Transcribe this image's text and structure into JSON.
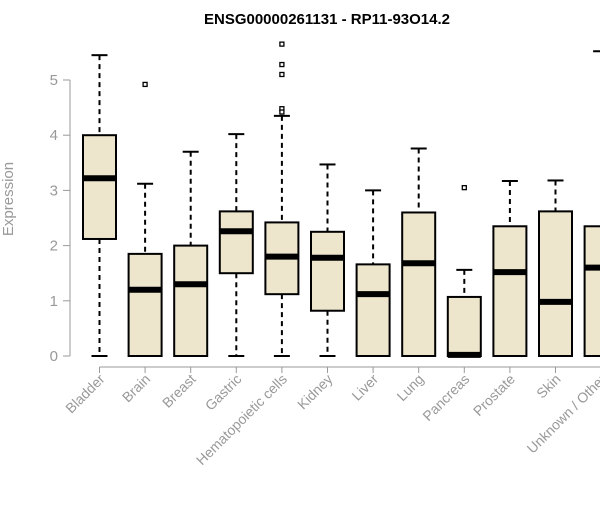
{
  "chart_data": {
    "type": "box",
    "title": "ENSG00000261131 - RP11-93O14.2",
    "xlabel": "",
    "ylabel": "Expression",
    "ylim": [
      0,
      5.5
    ],
    "yticks": [
      0,
      1,
      2,
      3,
      4,
      5
    ],
    "grid": false,
    "box_fill": "#ede6cc",
    "box_stroke": "#000000",
    "axis_color": "#999999",
    "categories": [
      "Bladder",
      "Brain",
      "Breast",
      "Gastric",
      "Hematopoietic cells",
      "Kidney",
      "Liver",
      "Lung",
      "Pancreas",
      "Prostate",
      "Skin",
      "Unknown / Other"
    ],
    "boxes": [
      {
        "min": 0.0,
        "q1": 2.12,
        "median": 3.22,
        "q3": 4.0,
        "max": 5.45,
        "outliers": []
      },
      {
        "min": 0.0,
        "q1": 0.0,
        "median": 1.2,
        "q3": 1.85,
        "max": 3.12,
        "outliers": [
          4.92
        ]
      },
      {
        "min": 0.0,
        "q1": 0.0,
        "median": 1.3,
        "q3": 2.0,
        "max": 3.7,
        "outliers": []
      },
      {
        "min": 0.0,
        "q1": 1.5,
        "median": 2.26,
        "q3": 2.62,
        "max": 4.02,
        "outliers": []
      },
      {
        "min": 0.0,
        "q1": 1.12,
        "median": 1.8,
        "q3": 2.42,
        "max": 4.35,
        "outliers": [
          5.65,
          5.28,
          5.1,
          4.48,
          4.42
        ]
      },
      {
        "min": 0.0,
        "q1": 0.82,
        "median": 1.78,
        "q3": 2.25,
        "max": 3.47,
        "outliers": []
      },
      {
        "min": 0.0,
        "q1": 0.0,
        "median": 1.12,
        "q3": 1.66,
        "max": 3.0,
        "outliers": []
      },
      {
        "min": 0.0,
        "q1": 0.0,
        "median": 1.68,
        "q3": 2.6,
        "max": 3.76,
        "outliers": []
      },
      {
        "min": 0.0,
        "q1": 0.0,
        "median": 0.02,
        "q3": 1.07,
        "max": 1.56,
        "outliers": [
          3.05
        ]
      },
      {
        "min": 0.0,
        "q1": 0.0,
        "median": 1.52,
        "q3": 2.35,
        "max": 3.17,
        "outliers": []
      },
      {
        "min": 0.0,
        "q1": 0.0,
        "median": 0.98,
        "q3": 2.62,
        "max": 3.18,
        "outliers": []
      },
      {
        "min": 0.0,
        "q1": 0.0,
        "median": 1.6,
        "q3": 2.35,
        "max": 5.52,
        "outliers": []
      }
    ]
  }
}
